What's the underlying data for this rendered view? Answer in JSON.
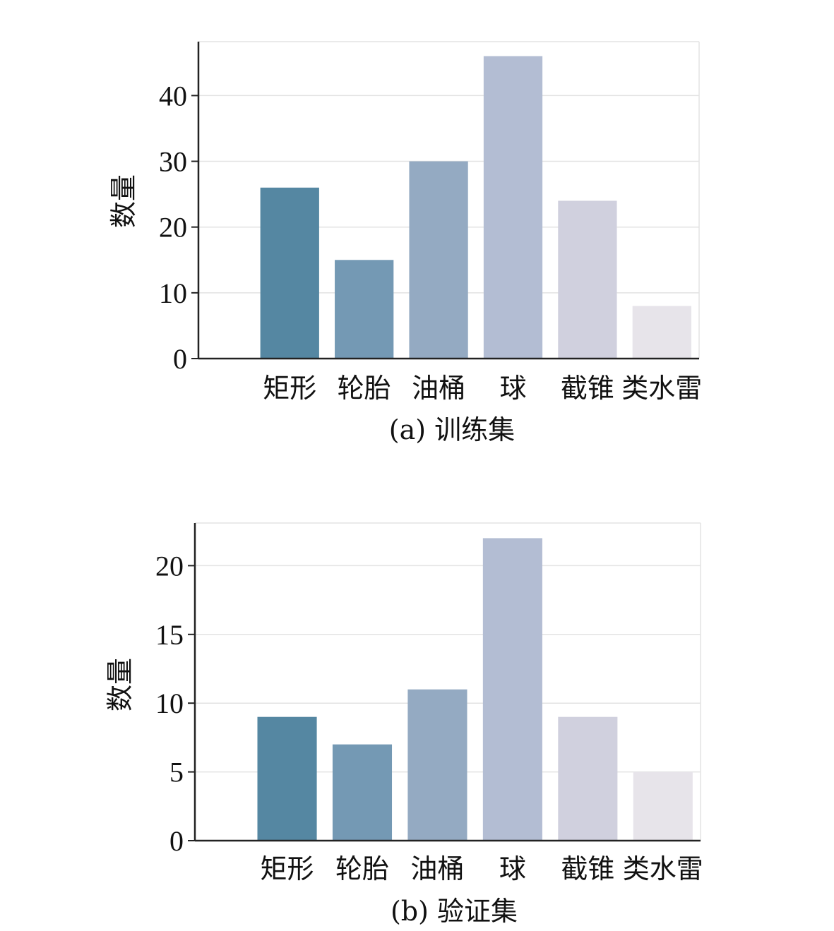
{
  "colors": {
    "bars": [
      "#5587a2",
      "#7499b4",
      "#94aac2",
      "#b3bdd3",
      "#d0d0de",
      "#e7e4ea"
    ],
    "axis": "#222222",
    "grid": "#e3e3e3",
    "text": "#111111"
  },
  "chart_data": [
    {
      "type": "bar",
      "categories": [
        "矩形",
        "轮胎",
        "油桶",
        "球",
        "截锥",
        "类水雷"
      ],
      "values": [
        26,
        15,
        30,
        46,
        24,
        8
      ],
      "ylabel": "数量",
      "xlabel": "",
      "caption": "(a) 训练集",
      "yticks": [
        0,
        10,
        20,
        30,
        40
      ],
      "ylim": [
        0,
        48.2
      ],
      "grid": true
    },
    {
      "type": "bar",
      "categories": [
        "矩形",
        "轮胎",
        "油桶",
        "球",
        "截锥",
        "类水雷"
      ],
      "values": [
        9,
        7,
        11,
        22,
        9,
        5
      ],
      "ylabel": "数量",
      "xlabel": "",
      "caption": "(b) 验证集",
      "yticks": [
        0,
        5,
        10,
        15,
        20
      ],
      "ylim": [
        0,
        23.1
      ],
      "grid": true
    }
  ]
}
